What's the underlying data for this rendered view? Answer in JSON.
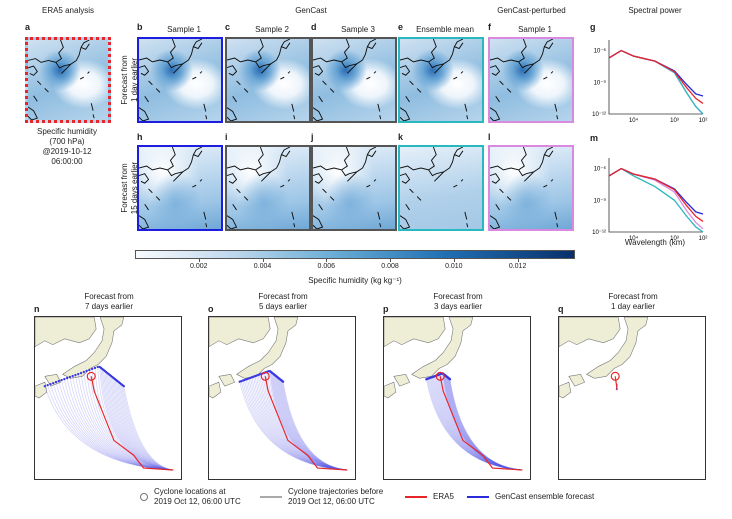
{
  "headers": {
    "era5": "ERA5 analysis",
    "gencast": "GenCast",
    "perturbed": "GenCast-perturbed",
    "spectral": "Spectral power"
  },
  "panel_letters": [
    "a",
    "b",
    "c",
    "d",
    "e",
    "f",
    "g",
    "h",
    "i",
    "j",
    "k",
    "l",
    "m",
    "n",
    "o",
    "p",
    "q"
  ],
  "columns": [
    "Sample 1",
    "Sample 2",
    "Sample 3",
    "Ensemble mean",
    "Sample 1"
  ],
  "row_labels": [
    "Forecast from\n1 day earlier",
    "Forecast from\n15 days earlier"
  ],
  "era5_caption": [
    "Specific humidity",
    "(700 hPa)",
    "@2019-10-12",
    "06:00:00"
  ],
  "colorbar": {
    "ticks": [
      "0.002",
      "0.004",
      "0.006",
      "0.008",
      "0.010",
      "0.012"
    ],
    "label": "Specific humidity (kg kg⁻¹)",
    "range": [
      0,
      0.0138
    ]
  },
  "spectral": {
    "yticks": [
      "10⁻⁶",
      "10⁻⁹",
      "10⁻¹²"
    ],
    "xticks": [
      "10⁴",
      "10³",
      "10²"
    ],
    "xlabel": "Wavelength (km)"
  },
  "cyclone_titles": [
    [
      "Forecast from",
      "7 days earlier"
    ],
    [
      "Forecast from",
      "5 days earlier"
    ],
    [
      "Forecast from",
      "3 days earlier"
    ],
    [
      "Forecast from",
      "1 day earlier"
    ]
  ],
  "legend": {
    "locations": [
      "Cyclone locations at",
      "2019 Oct 12, 06:00 UTC"
    ],
    "trajectories": [
      "Cyclone trajectories before",
      "2019 Oct 12, 06:00 UTC"
    ],
    "era5": "ERA5",
    "gencast": "GenCast ensemble forecast"
  },
  "colors": {
    "era5": "#e8262a",
    "gencast": "#2a2ad8",
    "mean": "#2ab8c0",
    "perturbed": "#d98ae0",
    "land": "#eeeed6"
  },
  "chart_data": [
    {
      "type": "line",
      "title": "g",
      "xlabel": "",
      "ylabel": "",
      "log": true,
      "x_km": [
        40000,
        20000,
        10000,
        3000,
        1000,
        500,
        300,
        200
      ],
      "series": [
        {
          "name": "ERA5",
          "values": [
            2e-07,
            1e-06,
            3e-07,
            1e-07,
            1e-08,
            3e-10,
            3e-11,
            1e-11
          ]
        },
        {
          "name": "GenCast",
          "values": [
            2e-07,
            1e-06,
            3e-07,
            1e-07,
            1.2e-08,
            6e-10,
            8e-11,
            5e-11
          ]
        },
        {
          "name": "Ensemble mean",
          "values": [
            2e-07,
            1e-06,
            3e-07,
            1e-07,
            8e-09,
            1e-10,
            5e-12,
            1e-12
          ]
        },
        {
          "name": "GenCast-perturbed",
          "values": [
            2e-07,
            1e-06,
            3e-07,
            1e-07,
            8e-09,
            1e-10,
            5e-12,
            1e-12
          ]
        }
      ]
    },
    {
      "type": "line",
      "title": "m",
      "xlabel": "Wavelength (km)",
      "ylabel": "",
      "log": true,
      "x_km": [
        40000,
        20000,
        10000,
        3000,
        1000,
        500,
        300,
        200
      ],
      "series": [
        {
          "name": "ERA5",
          "values": [
            2e-07,
            1e-06,
            3e-07,
            1e-07,
            1e-08,
            3e-10,
            3e-11,
            1e-11
          ]
        },
        {
          "name": "GenCast",
          "values": [
            2e-07,
            1e-06,
            3e-07,
            1e-07,
            1.2e-08,
            6e-10,
            8e-11,
            5e-11
          ]
        },
        {
          "name": "Ensemble mean",
          "values": [
            2e-07,
            1e-06,
            2e-07,
            2e-08,
            1e-09,
            3e-11,
            3e-12,
            1e-12
          ]
        },
        {
          "name": "GenCast-perturbed",
          "values": [
            2e-07,
            1e-06,
            3e-07,
            8e-08,
            6e-09,
            1e-10,
            8e-12,
            2e-12
          ]
        }
      ]
    }
  ]
}
